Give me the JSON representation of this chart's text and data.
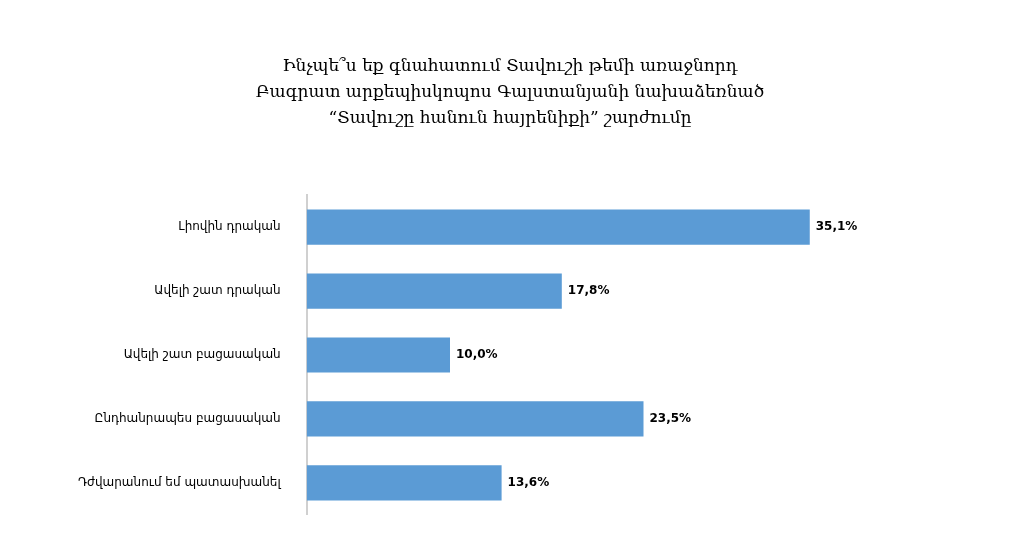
{
  "chart_data": {
    "type": "bar",
    "orientation": "horizontal",
    "title": "Ինչպե՞ս եք գնահատում Տավուշի թեմի առաջնորդ Բագրատ արքեպիսկոպոս Գալստանյանի նախաձեռնած “Տավուշը հանուն հայրենիքի” շարժումը",
    "categories": [
      "Լիովին դրական",
      "Ավելի շատ դրական",
      "Ավելի շատ բացասական",
      "Ընդհանրապես բացասական",
      "Դժվարանում եմ պատասխանել"
    ],
    "values": [
      35.1,
      17.8,
      10.0,
      23.5,
      13.6
    ],
    "value_labels": [
      "35,1%",
      "17,8%",
      "10,0%",
      "23,5%",
      "13,6%"
    ],
    "color": "#5b9bd5"
  }
}
